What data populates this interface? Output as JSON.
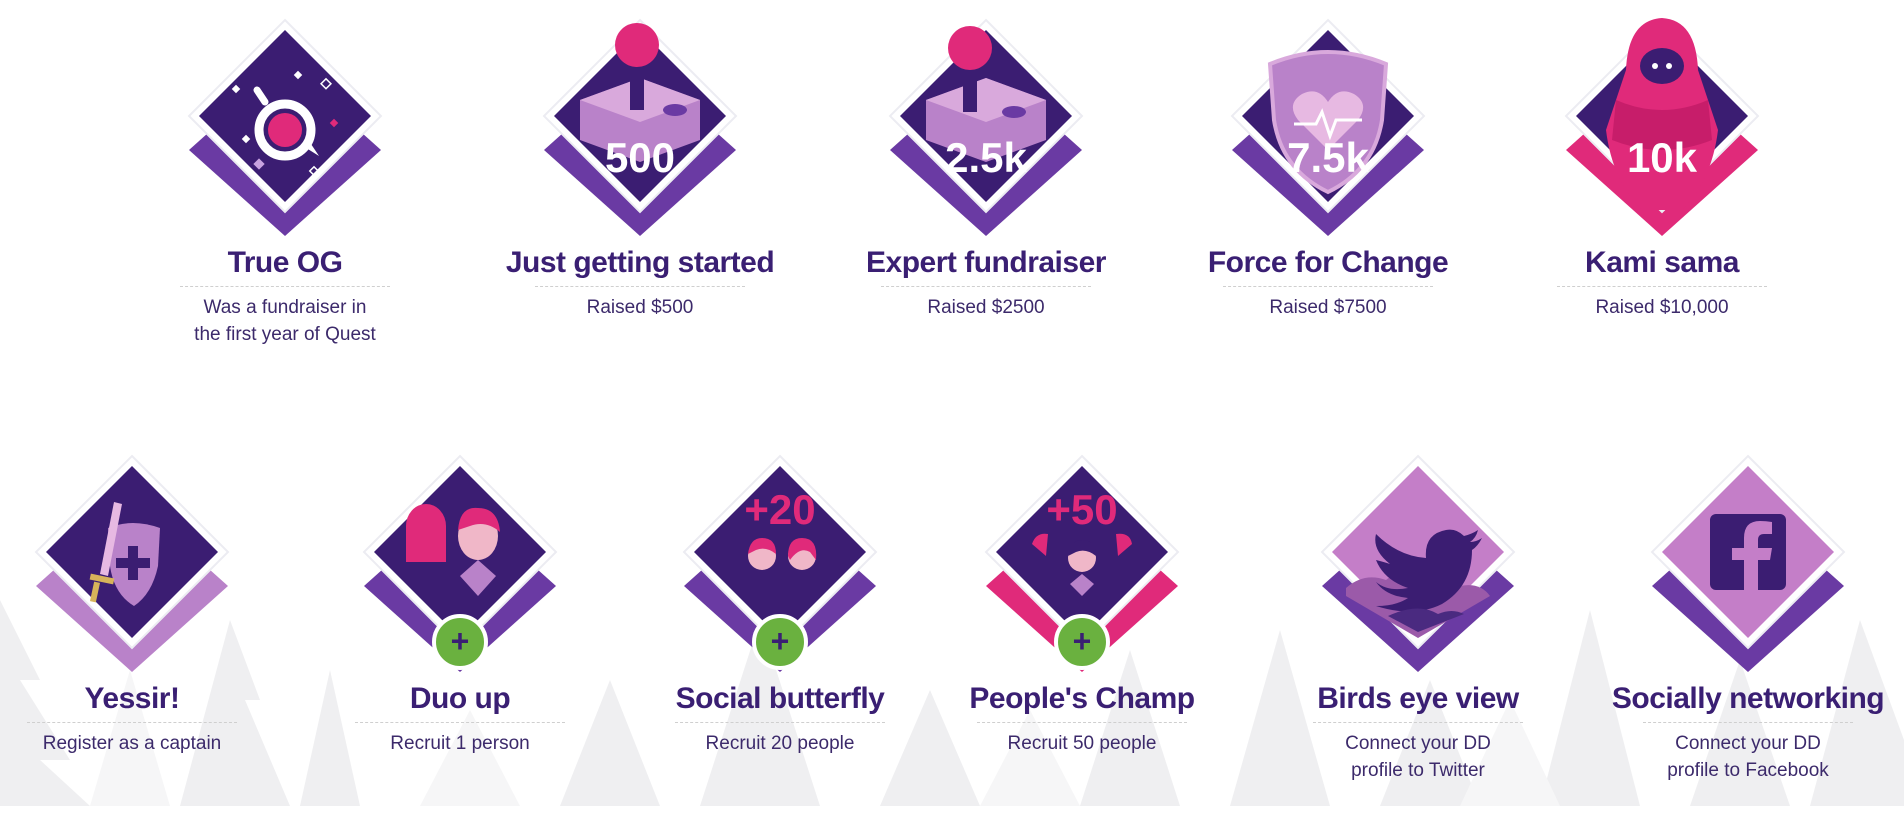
{
  "colors": {
    "title": "#3a1f73",
    "description": "#3c2a6b",
    "diamond_dark": "#3b1d72",
    "accent_pink": "#e02a7a",
    "accent_purple": "#6a3aa3",
    "plus_green": "#6ab13f"
  },
  "badges_row1": [
    {
      "title": "True OG",
      "desc_line1": "Was a fundraiser in",
      "desc_line2": "the first year of Quest",
      "icon": "quest-logo-icon",
      "label": ""
    },
    {
      "title": "Just getting started",
      "desc_line1": "Raised $500",
      "desc_line2": "",
      "icon": "joystick-icon",
      "label": "500"
    },
    {
      "title": "Expert fundraiser",
      "desc_line1": "Raised $2500",
      "desc_line2": "",
      "icon": "joystick-icon",
      "label": "2.5k"
    },
    {
      "title": "Force for Change",
      "desc_line1": "Raised $7500",
      "desc_line2": "",
      "icon": "heart-shield-icon",
      "label": "7.5k"
    },
    {
      "title": "Kami sama",
      "desc_line1": "Raised $10,000",
      "desc_line2": "",
      "icon": "hooded-figure-icon",
      "label": "10k"
    }
  ],
  "badges_row2": [
    {
      "title": "Yessir!",
      "desc_line1": "Register as a captain",
      "desc_line2": "",
      "icon": "sword-shield-icon",
      "label": ""
    },
    {
      "title": "Duo up",
      "desc_line1": "Recruit 1 person",
      "desc_line2": "",
      "icon": "two-people-icon",
      "label": "",
      "plus": "+"
    },
    {
      "title": "Social butterfly",
      "desc_line1": "Recruit 20 people",
      "desc_line2": "",
      "icon": "two-people-icon",
      "label": "+20",
      "plus": "+"
    },
    {
      "title": "People's Champ",
      "desc_line1": "Recruit 50 people",
      "desc_line2": "",
      "icon": "group-people-icon",
      "label": "+50",
      "plus": "+"
    },
    {
      "title": "Birds eye view",
      "desc_line1": "Connect your DD",
      "desc_line2": "profile to Twitter",
      "icon": "twitter-bird-icon",
      "label": ""
    },
    {
      "title": "Socially networking",
      "desc_line1": "Connect your DD",
      "desc_line2": "profile to Facebook",
      "icon": "facebook-icon",
      "label": ""
    }
  ]
}
